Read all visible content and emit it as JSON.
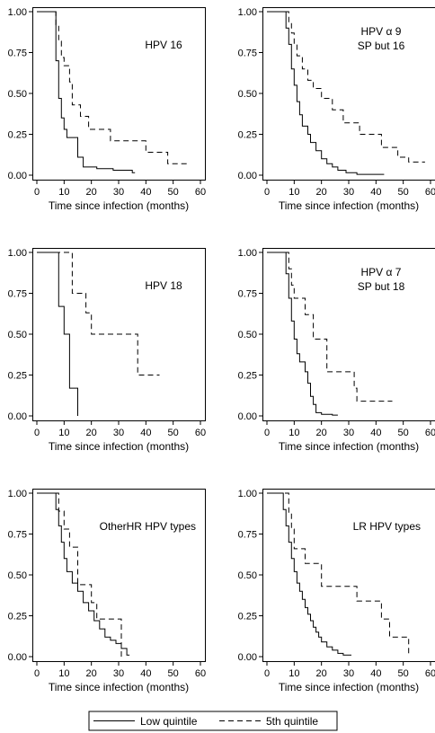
{
  "chart_data": [
    {
      "type": "line",
      "title": "HPV 16",
      "xlabel": "Time since infection (months)",
      "ylabel": "",
      "xlim": [
        0,
        60
      ],
      "ylim": [
        0,
        1
      ],
      "x_ticks": [
        "0",
        "10",
        "20",
        "30",
        "40",
        "50",
        "60"
      ],
      "y_ticks": [
        "0.00",
        "0.25",
        "0.50",
        "0.75",
        "1.00"
      ],
      "series": [
        {
          "name": "Low quintile",
          "x": [
            0,
            6,
            7,
            8,
            9,
            10,
            11,
            12,
            15,
            17,
            22,
            28,
            35,
            36
          ],
          "y": [
            1,
            1,
            0.7,
            0.47,
            0.35,
            0.28,
            0.23,
            0.23,
            0.11,
            0.05,
            0.04,
            0.03,
            0.015,
            0.015
          ]
        },
        {
          "name": "5th quintile",
          "x": [
            0,
            6,
            7,
            8,
            9,
            10,
            12,
            13,
            16,
            19,
            27,
            40,
            48,
            50,
            55
          ],
          "y": [
            1,
            1,
            0.92,
            0.82,
            0.72,
            0.67,
            0.57,
            0.43,
            0.36,
            0.28,
            0.21,
            0.14,
            0.07,
            0.07,
            0.07
          ]
        }
      ]
    },
    {
      "type": "line",
      "title": "HPV α 9 SP but 16",
      "xlabel": "Time since infection (months)",
      "ylabel": "",
      "xlim": [
        0,
        60
      ],
      "ylim": [
        0,
        1
      ],
      "x_ticks": [
        "0",
        "10",
        "20",
        "30",
        "40",
        "50",
        "60"
      ],
      "y_ticks": [
        "0.00",
        "0.25",
        "0.50",
        "0.75",
        "1.00"
      ],
      "series": [
        {
          "name": "Low quintile",
          "x": [
            0,
            6,
            7,
            8,
            9,
            10,
            11,
            12,
            13,
            15,
            16,
            18,
            20,
            22,
            24,
            26,
            29,
            33,
            38,
            43
          ],
          "y": [
            1,
            1,
            0.9,
            0.8,
            0.65,
            0.55,
            0.45,
            0.37,
            0.3,
            0.25,
            0.2,
            0.15,
            0.1,
            0.07,
            0.05,
            0.03,
            0.015,
            0.005,
            0.005,
            0.005
          ]
        },
        {
          "name": "5th quintile",
          "x": [
            0,
            7,
            8,
            9,
            10,
            11,
            13,
            15,
            17,
            20,
            24,
            28,
            34,
            42,
            48,
            52,
            58
          ],
          "y": [
            1,
            1,
            0.93,
            0.87,
            0.8,
            0.73,
            0.65,
            0.58,
            0.53,
            0.47,
            0.4,
            0.32,
            0.25,
            0.17,
            0.11,
            0.08,
            0.08
          ]
        }
      ]
    },
    {
      "type": "line",
      "title": "HPV 18",
      "xlabel": "Time since infection (months)",
      "ylabel": "",
      "xlim": [
        0,
        60
      ],
      "ylim": [
        0,
        1
      ],
      "x_ticks": [
        "0",
        "10",
        "20",
        "30",
        "40",
        "50",
        "60"
      ],
      "y_ticks": [
        "0.00",
        "0.25",
        "0.50",
        "0.75",
        "1.00"
      ],
      "series": [
        {
          "name": "Low quintile",
          "x": [
            0,
            7,
            8,
            10,
            12,
            15
          ],
          "y": [
            1,
            1,
            0.67,
            0.5,
            0.17,
            0
          ]
        },
        {
          "name": "5th quintile",
          "x": [
            0,
            12,
            13,
            18,
            20,
            36,
            37,
            45
          ],
          "y": [
            1,
            1,
            0.75,
            0.63,
            0.5,
            0.5,
            0.25,
            0.25
          ]
        }
      ]
    },
    {
      "type": "line",
      "title": "HPV α 7 SP but 18",
      "xlabel": "Time since infection (months)",
      "ylabel": "",
      "xlim": [
        0,
        60
      ],
      "ylim": [
        0,
        1
      ],
      "x_ticks": [
        "0",
        "10",
        "20",
        "30",
        "40",
        "50",
        "60"
      ],
      "y_ticks": [
        "0.00",
        "0.25",
        "0.50",
        "0.75",
        "1.00"
      ],
      "series": [
        {
          "name": "Low quintile",
          "x": [
            0,
            6,
            7,
            8,
            9,
            10,
            11,
            12,
            14,
            15,
            16,
            17,
            18,
            20,
            24,
            26
          ],
          "y": [
            1,
            1,
            0.87,
            0.72,
            0.58,
            0.47,
            0.38,
            0.33,
            0.27,
            0.2,
            0.12,
            0.07,
            0.02,
            0.01,
            0.005,
            0.005
          ]
        },
        {
          "name": "5th quintile",
          "x": [
            0,
            7,
            8,
            9,
            10,
            14,
            17,
            22,
            32,
            33,
            46
          ],
          "y": [
            1,
            1,
            0.9,
            0.8,
            0.72,
            0.62,
            0.47,
            0.27,
            0.17,
            0.09,
            0.09
          ]
        }
      ]
    },
    {
      "type": "line",
      "title": "OtherHR HPV types",
      "xlabel": "Time since infection (months)",
      "ylabel": "",
      "xlim": [
        0,
        60
      ],
      "ylim": [
        0,
        1
      ],
      "x_ticks": [
        "0",
        "10",
        "20",
        "30",
        "40",
        "50",
        "60"
      ],
      "y_ticks": [
        "0.00",
        "0.25",
        "0.50",
        "0.75",
        "1.00"
      ],
      "series": [
        {
          "name": "Low quintile",
          "x": [
            0,
            6,
            7,
            8,
            9,
            10,
            11,
            13,
            15,
            17,
            19,
            21,
            23,
            25,
            27,
            29,
            31,
            33,
            34
          ],
          "y": [
            1,
            1,
            0.9,
            0.8,
            0.7,
            0.6,
            0.52,
            0.45,
            0.4,
            0.33,
            0.28,
            0.22,
            0.17,
            0.12,
            0.1,
            0.08,
            0.05,
            0.01,
            0.01
          ]
        },
        {
          "name": "5th quintile",
          "x": [
            0,
            7,
            8,
            10,
            12,
            15,
            20,
            22,
            30,
            31
          ],
          "y": [
            1,
            1,
            0.89,
            0.78,
            0.67,
            0.44,
            0.33,
            0.23,
            0.23,
            0
          ]
        }
      ]
    },
    {
      "type": "line",
      "title": "LR HPV types",
      "xlabel": "Time since infection (months)",
      "ylabel": "",
      "xlim": [
        0,
        60
      ],
      "ylim": [
        0,
        1
      ],
      "x_ticks": [
        "0",
        "10",
        "20",
        "30",
        "40",
        "50",
        "60"
      ],
      "y_ticks": [
        "0.00",
        "0.25",
        "0.50",
        "0.75",
        "1.00"
      ],
      "series": [
        {
          "name": "Low quintile",
          "x": [
            0,
            5,
            6,
            7,
            8,
            9,
            10,
            11,
            12,
            13,
            14,
            15,
            16,
            17,
            18,
            19,
            20,
            22,
            24,
            26,
            28,
            31
          ],
          "y": [
            1,
            1,
            0.9,
            0.8,
            0.7,
            0.6,
            0.52,
            0.45,
            0.4,
            0.35,
            0.3,
            0.26,
            0.22,
            0.18,
            0.15,
            0.12,
            0.09,
            0.06,
            0.04,
            0.02,
            0.01,
            0.01
          ]
        },
        {
          "name": "5th quintile",
          "x": [
            0,
            7,
            8,
            9,
            10,
            14,
            20,
            33,
            42,
            45,
            46,
            52
          ],
          "y": [
            1,
            1,
            0.88,
            0.78,
            0.66,
            0.57,
            0.43,
            0.34,
            0.23,
            0.12,
            0.12,
            0
          ]
        }
      ]
    }
  ],
  "legend": {
    "items": [
      {
        "label": "Low quintile",
        "style": "solid"
      },
      {
        "label": "5th quintile",
        "style": "dashed"
      }
    ]
  },
  "colors": {
    "line": "#000000",
    "background": "#ffffff"
  }
}
